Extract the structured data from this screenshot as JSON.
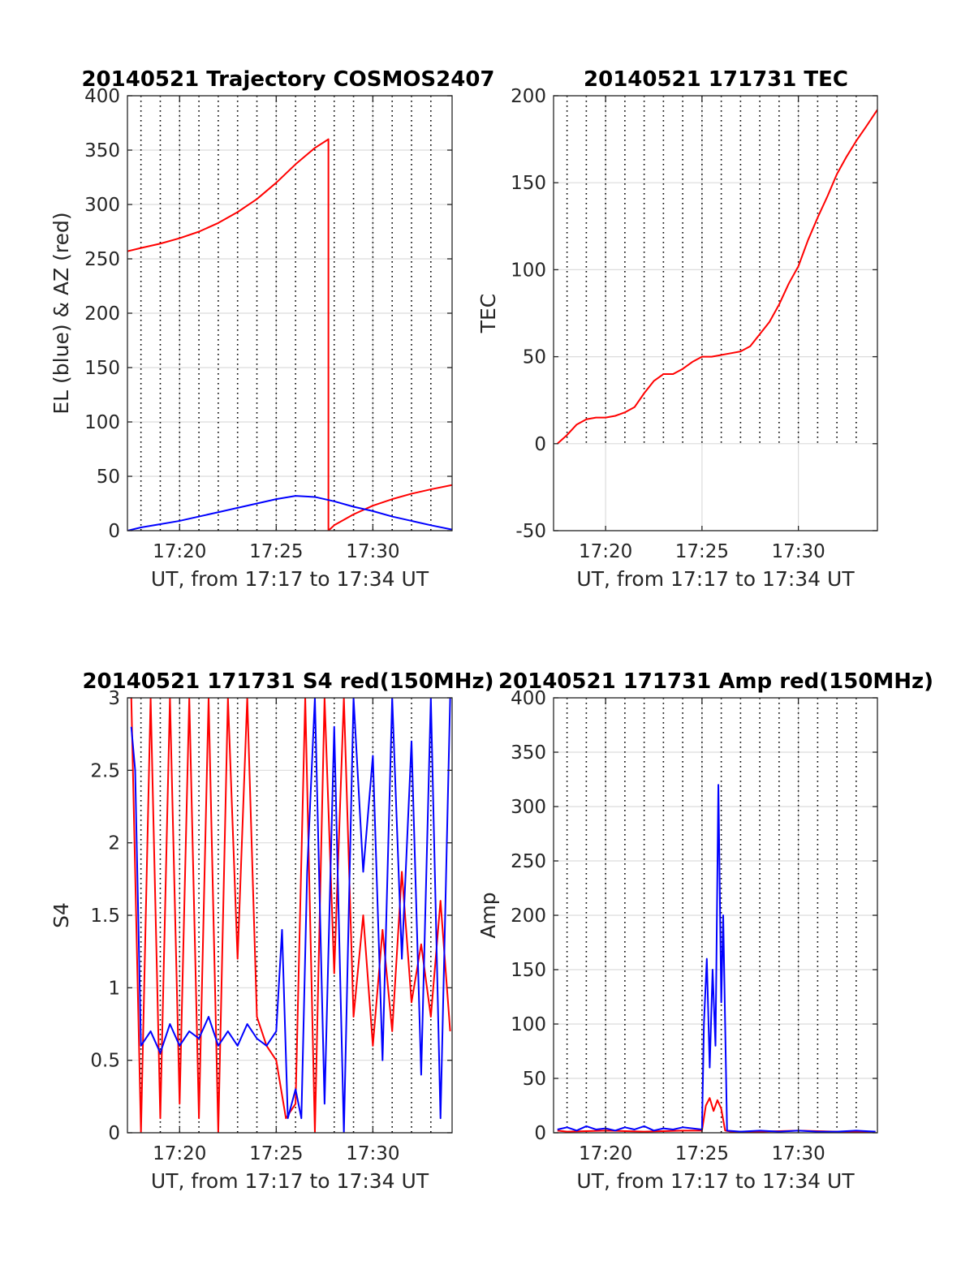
{
  "figure": {
    "background": "#ffffff",
    "colors": {
      "red": "#ff0000",
      "blue": "#0000ff",
      "axis": "#262626"
    }
  },
  "chart_data": [
    {
      "type": "line",
      "title": "20140521 Trajectory COSMOS2407",
      "xlabel": "UT, from 17:17 to 17:34 UT",
      "ylabel": "EL (blue) & AZ (red)",
      "xlim": [
        17.3,
        34.1
      ],
      "ylim": [
        0,
        400
      ],
      "x_ticks": [
        20,
        25,
        30
      ],
      "x_tick_labels": [
        "17:20",
        "17:25",
        "17:30"
      ],
      "y_ticks": [
        0,
        50,
        100,
        150,
        200,
        250,
        300,
        350,
        400
      ],
      "y_tick_labels": [
        "0",
        "50",
        "100",
        "150",
        "200",
        "250",
        "300",
        "350",
        "400"
      ],
      "x_minor_grid": [
        18,
        19,
        20,
        21,
        22,
        23,
        24,
        25,
        26,
        27,
        28,
        29,
        30,
        31,
        32,
        33
      ],
      "grid": true,
      "series": [
        {
          "name": "AZ",
          "color": "#ff0000",
          "x": [
            17.3,
            18,
            19,
            20,
            21,
            22,
            23,
            24,
            25,
            26,
            27,
            27.7,
            27.7,
            27.7,
            28,
            29,
            30,
            31,
            32,
            33,
            34.1
          ],
          "y": [
            257,
            260,
            264,
            269,
            275,
            283,
            293,
            305,
            320,
            337,
            352,
            360,
            360,
            0,
            5,
            15,
            23,
            29,
            34,
            38,
            42
          ]
        },
        {
          "name": "EL",
          "color": "#0000ff",
          "x": [
            17.3,
            18,
            19,
            20,
            21,
            22,
            23,
            24,
            25,
            26,
            27,
            28,
            29,
            30,
            31,
            32,
            33,
            34.1
          ],
          "y": [
            0,
            3,
            6,
            9,
            13,
            17,
            21,
            25,
            29,
            32,
            31,
            27,
            22,
            18,
            13,
            9,
            5,
            1
          ]
        }
      ]
    },
    {
      "type": "line",
      "title": "20140521 171731 TEC",
      "xlabel": "UT, from 17:17 to 17:34 UT",
      "ylabel": "TEC",
      "xlim": [
        17.3,
        34.1
      ],
      "ylim": [
        -50,
        200
      ],
      "x_ticks": [
        20,
        25,
        30
      ],
      "x_tick_labels": [
        "17:20",
        "17:25",
        "17:30"
      ],
      "y_ticks": [
        -50,
        0,
        50,
        100,
        150,
        200
      ],
      "y_tick_labels": [
        "-50",
        "0",
        "50",
        "100",
        "150",
        "200"
      ],
      "x_minor_grid": [
        18,
        19,
        20,
        21,
        22,
        23,
        24,
        25,
        26,
        27,
        28,
        29,
        30,
        31,
        32,
        33
      ],
      "minor_grid_above": 0,
      "grid": true,
      "series": [
        {
          "name": "TEC",
          "color": "#ff0000",
          "x": [
            17.5,
            18,
            18.5,
            19,
            19.5,
            20,
            20.5,
            21,
            21.5,
            22,
            22.5,
            23,
            23.5,
            24,
            24.5,
            25,
            25.5,
            26,
            26.5,
            27,
            27.5,
            28,
            28.5,
            29,
            29.5,
            30,
            30.5,
            31,
            31.5,
            32,
            32.5,
            33,
            33.5,
            34.1
          ],
          "y": [
            0,
            5,
            11,
            14,
            15,
            15,
            16,
            18,
            21,
            29,
            36,
            40,
            40,
            43,
            47,
            50,
            50,
            51,
            52,
            53,
            56,
            63,
            70,
            80,
            92,
            102,
            117,
            130,
            142,
            155,
            165,
            174,
            182,
            192
          ]
        }
      ]
    },
    {
      "type": "line",
      "title": "20140521 171731 S4 red(150MHz)",
      "xlabel": "UT, from 17:17 to 17:34 UT",
      "ylabel": "S4",
      "xlim": [
        17.3,
        34.1
      ],
      "ylim": [
        0,
        3
      ],
      "x_ticks": [
        20,
        25,
        30
      ],
      "x_tick_labels": [
        "17:20",
        "17:25",
        "17:30"
      ],
      "y_ticks": [
        0,
        0.5,
        1,
        1.5,
        2,
        2.5,
        3
      ],
      "y_tick_labels": [
        "0",
        "0.5",
        "1",
        "1.5",
        "2",
        "2.5",
        "3"
      ],
      "x_minor_grid": [
        18,
        19,
        20,
        21,
        22,
        23,
        24,
        25,
        26,
        27,
        28,
        29,
        30,
        31,
        32,
        33
      ],
      "grid": true,
      "series": [
        {
          "name": "S4 red",
          "color": "#ff0000",
          "x": [
            17.5,
            18,
            18.5,
            19,
            19.5,
            20,
            20.5,
            21,
            21.5,
            22,
            22.5,
            23,
            23.5,
            24,
            24.5,
            25,
            25.5,
            26,
            26.5,
            27,
            27.5,
            28,
            28.5,
            29,
            29.5,
            30,
            30.5,
            31,
            31.5,
            32,
            32.5,
            33,
            33.5,
            34
          ],
          "y": [
            3,
            0,
            3,
            0.1,
            3,
            0.2,
            3,
            0.1,
            3,
            0,
            3,
            1.2,
            3,
            0.8,
            0.6,
            0.5,
            0.1,
            0.2,
            3,
            0,
            3,
            1.1,
            3,
            0.8,
            1.5,
            0.6,
            1.4,
            0.7,
            1.8,
            0.9,
            1.3,
            0.8,
            1.6,
            0.7
          ]
        },
        {
          "name": "S4 blue",
          "color": "#0000ff",
          "x": [
            17.5,
            17.7,
            18,
            18.5,
            19,
            19.5,
            20,
            20.5,
            21,
            21.5,
            22,
            22.5,
            23,
            23.5,
            24,
            24.5,
            25,
            25.3,
            25.6,
            26,
            26.3,
            26.6,
            27,
            27.5,
            28,
            28.5,
            29,
            29.5,
            30,
            30.5,
            31,
            31.5,
            32,
            32.5,
            33,
            33.5,
            34
          ],
          "y": [
            2.8,
            2.5,
            0.6,
            0.7,
            0.55,
            0.75,
            0.6,
            0.7,
            0.65,
            0.8,
            0.6,
            0.7,
            0.6,
            0.75,
            0.65,
            0.6,
            0.7,
            1.4,
            0.1,
            0.3,
            0.1,
            1.8,
            3,
            0.2,
            2.8,
            0,
            3,
            1.8,
            2.6,
            0.5,
            3,
            1.2,
            2.7,
            0.4,
            3,
            0.1,
            3
          ]
        }
      ]
    },
    {
      "type": "line",
      "title": "20140521 171731 Amp red(150MHz)",
      "xlabel": "UT, from 17:17 to 17:34 UT",
      "ylabel": "Amp",
      "xlim": [
        17.3,
        34.1
      ],
      "ylim": [
        0,
        400
      ],
      "x_ticks": [
        20,
        25,
        30
      ],
      "x_tick_labels": [
        "17:20",
        "17:25",
        "17:30"
      ],
      "y_ticks": [
        0,
        50,
        100,
        150,
        200,
        250,
        300,
        350,
        400
      ],
      "y_tick_labels": [
        "0",
        "50",
        "100",
        "150",
        "200",
        "250",
        "300",
        "350",
        "400"
      ],
      "x_minor_grid": [
        18,
        19,
        20,
        21,
        22,
        23,
        24,
        25,
        26,
        27,
        28,
        29,
        30,
        31,
        32,
        33
      ],
      "grid": true,
      "series": [
        {
          "name": "Amp red",
          "color": "#ff0000",
          "x": [
            17.5,
            18,
            20,
            22,
            24,
            25,
            25.2,
            25.4,
            25.6,
            25.8,
            26,
            26.2,
            26.5,
            28,
            30,
            32,
            34
          ],
          "y": [
            2,
            1,
            2,
            1,
            2,
            2,
            25,
            32,
            20,
            30,
            22,
            2,
            1,
            1,
            2,
            1,
            1
          ]
        },
        {
          "name": "Amp blue",
          "color": "#0000ff",
          "x": [
            17.5,
            18,
            18.5,
            19,
            19.5,
            20,
            20.5,
            21,
            21.5,
            22,
            22.5,
            23,
            23.5,
            24,
            24.5,
            25,
            25.1,
            25.25,
            25.4,
            25.55,
            25.7,
            25.85,
            26,
            26.1,
            26.3,
            27,
            28,
            29,
            30,
            31,
            32,
            33,
            34
          ],
          "y": [
            3,
            5,
            2,
            6,
            3,
            4,
            2,
            5,
            3,
            6,
            2,
            4,
            3,
            5,
            4,
            3,
            100,
            160,
            60,
            150,
            80,
            320,
            120,
            200,
            2,
            1,
            2,
            1,
            2,
            1,
            1,
            2,
            1
          ]
        }
      ]
    }
  ]
}
